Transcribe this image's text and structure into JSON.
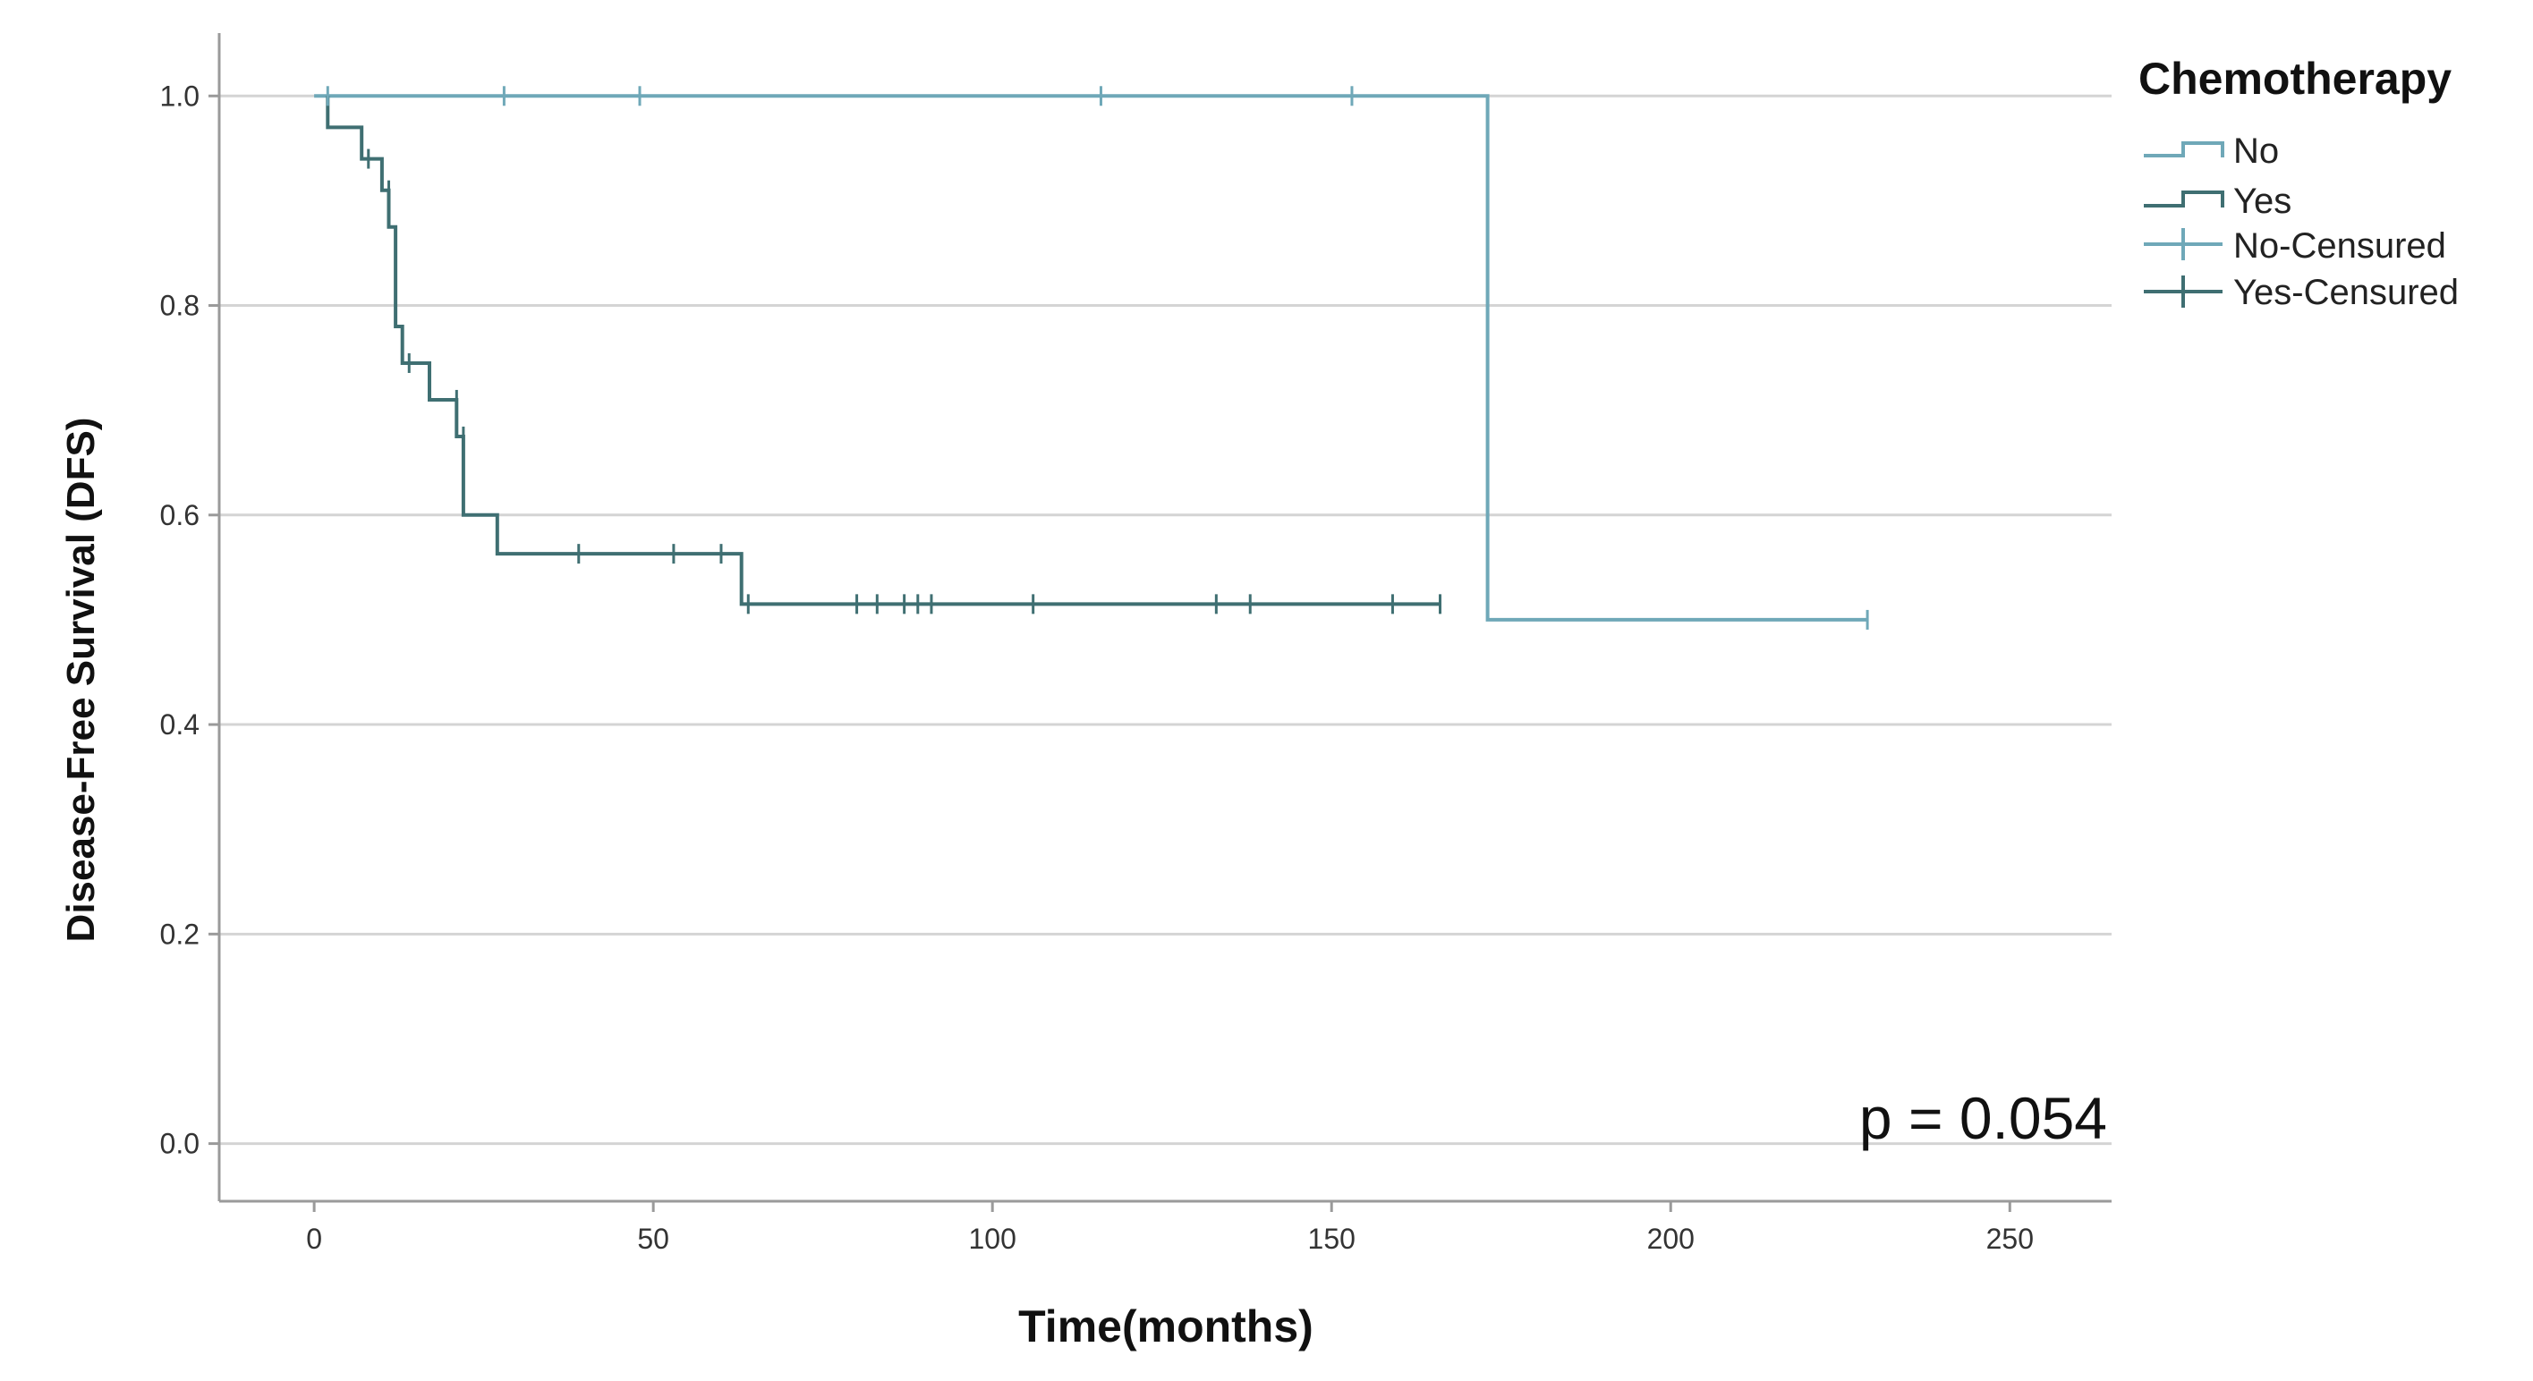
{
  "chart_data": {
    "type": "line",
    "subtype": "kaplan-meier",
    "xlabel": "Time(months)",
    "ylabel": "Disease-Free Survival (DFS)",
    "xlim": [
      -14,
      265
    ],
    "ylim": [
      -0.055,
      1.06
    ],
    "xticks": [
      0,
      50,
      100,
      150,
      200,
      250
    ],
    "yticks": [
      0.0,
      0.2,
      0.4,
      0.6,
      0.8,
      1.0
    ],
    "xtick_labels": [
      "0",
      "50",
      "100",
      "150",
      "200",
      "250"
    ],
    "ytick_labels": [
      "0.0",
      "0.2",
      "0.4",
      "0.6",
      "0.8",
      "1.0"
    ],
    "grid": "horizontal",
    "legend_position": "right",
    "annotation": "p = 0.054",
    "legend": {
      "title": "Chemotherapy",
      "entries": [
        "No",
        "Yes",
        "No-Censured",
        "Yes-Censured"
      ]
    },
    "series": [
      {
        "name": "No",
        "color": "#6fa8b8",
        "step_points": [
          [
            0,
            1.0
          ],
          [
            173,
            1.0
          ],
          [
            173,
            0.5
          ],
          [
            229,
            0.5
          ]
        ],
        "censored": [
          [
            2,
            1.0
          ],
          [
            28,
            1.0
          ],
          [
            48,
            1.0
          ],
          [
            116,
            1.0
          ],
          [
            153,
            1.0
          ],
          [
            229,
            0.5
          ]
        ]
      },
      {
        "name": "Yes",
        "color": "#3f6f72",
        "step_points": [
          [
            2,
            1.0
          ],
          [
            2,
            0.97
          ],
          [
            7,
            0.97
          ],
          [
            7,
            0.94
          ],
          [
            10,
            0.94
          ],
          [
            10,
            0.91
          ],
          [
            11,
            0.91
          ],
          [
            11,
            0.875
          ],
          [
            12,
            0.875
          ],
          [
            12,
            0.78
          ],
          [
            13,
            0.78
          ],
          [
            13,
            0.745
          ],
          [
            17,
            0.745
          ],
          [
            17,
            0.71
          ],
          [
            21,
            0.71
          ],
          [
            21,
            0.675
          ],
          [
            22,
            0.675
          ],
          [
            22,
            0.6
          ],
          [
            27,
            0.6
          ],
          [
            27,
            0.563
          ],
          [
            63,
            0.563
          ],
          [
            63,
            0.515
          ],
          [
            166,
            0.515
          ]
        ],
        "censored": [
          [
            8,
            0.94
          ],
          [
            11,
            0.91
          ],
          [
            14,
            0.745
          ],
          [
            21,
            0.71
          ],
          [
            22,
            0.675
          ],
          [
            39,
            0.563
          ],
          [
            53,
            0.563
          ],
          [
            60,
            0.563
          ],
          [
            64,
            0.515
          ],
          [
            80,
            0.515
          ],
          [
            83,
            0.515
          ],
          [
            87,
            0.515
          ],
          [
            89,
            0.515
          ],
          [
            91,
            0.515
          ],
          [
            106,
            0.515
          ],
          [
            133,
            0.515
          ],
          [
            138,
            0.515
          ],
          [
            159,
            0.515
          ],
          [
            166,
            0.515
          ]
        ]
      }
    ]
  }
}
